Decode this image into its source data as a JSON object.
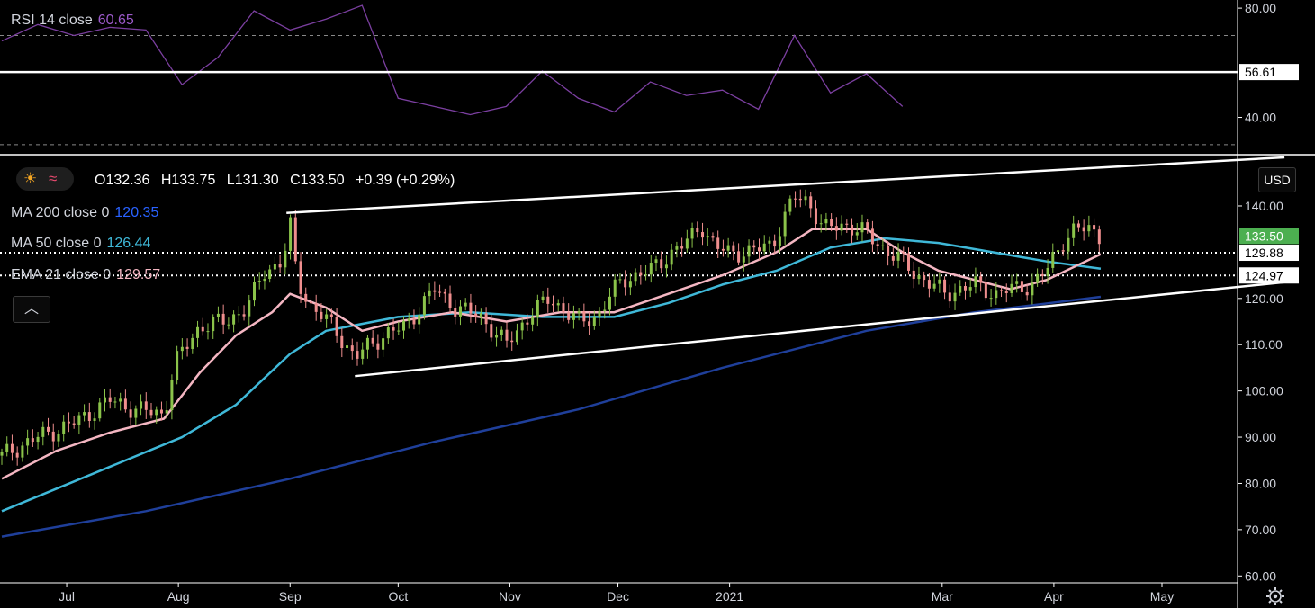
{
  "rsi_legend": {
    "name": "RSI 14 close",
    "value": "60.65"
  },
  "ohlc": {
    "open": "O132.36",
    "high": "H133.75",
    "low": "L131.30",
    "close": "C133.50",
    "change": "+0.39 (+0.29%)"
  },
  "ma_legends": [
    {
      "name": "MA 200 close 0",
      "value": "120.35",
      "color": "#2962ff"
    },
    {
      "name": "MA 50 close 0",
      "value": "126.44",
      "color": "#3fb8d8"
    },
    {
      "name": "EMA 21 close 0",
      "value": "129.57",
      "color": "#f4b6c2"
    }
  ],
  "currency": "USD",
  "icons": {
    "collapse": "chevron-up-icon",
    "settings": "gear-icon",
    "sun": "sun-icon",
    "wave": "wave-icon"
  },
  "colors": {
    "up": "#8bc34a",
    "down": "#ef8e8e",
    "rsi": "#7b3fa0",
    "ma200": "#1f3f9a",
    "ma50": "#3fb8d8",
    "ema21": "#f4b6c2",
    "last_price_bg": "#4caf50"
  },
  "chart_data": [
    {
      "type": "line",
      "title": "RSI 14 close",
      "ylim": [
        27,
        83
      ],
      "yticks": [
        "80.00",
        "40.00"
      ],
      "levels": [
        70,
        30
      ],
      "horizontal_line": {
        "value": 56.61,
        "label": "56.61"
      },
      "x": [
        0,
        10,
        20,
        30,
        40,
        50,
        60,
        70,
        80,
        90,
        100,
        110,
        120,
        130,
        140,
        150,
        160,
        170,
        180,
        190,
        200,
        210,
        220,
        230,
        240,
        250
      ],
      "values": [
        68,
        74,
        70,
        73,
        72,
        52,
        62,
        79,
        72,
        76,
        81,
        47,
        44,
        41,
        44,
        57,
        47,
        42,
        53,
        48,
        50,
        43,
        70,
        49,
        56,
        44
      ]
    },
    {
      "type": "line",
      "ylim": [
        58.5,
        150.5
      ],
      "yticks": [
        "60.00",
        "70.00",
        "80.00",
        "90.00",
        "100.00",
        "110.00",
        "120.00",
        "140.00"
      ],
      "yticks_values": [
        60,
        70,
        80,
        90,
        100,
        110,
        120,
        140
      ],
      "xticks": [
        "Jul",
        "Aug",
        "Sep",
        "Oct",
        "Nov",
        "Dec",
        "2021",
        "Mar",
        "Apr",
        "May"
      ],
      "xticks_day": [
        18,
        49,
        80,
        110,
        141,
        171,
        202,
        261,
        292,
        322
      ],
      "price_labels": [
        {
          "value": 133.5,
          "label": "133.50",
          "kind": "last"
        },
        {
          "value": 129.88,
          "label": "129.88",
          "kind": "level"
        },
        {
          "value": 124.97,
          "label": "124.97",
          "kind": "level"
        }
      ],
      "trendlines": [
        {
          "from": [
            79,
            138.5
          ],
          "to": [
            356,
            150.5
          ]
        },
        {
          "from": [
            98,
            103.2
          ],
          "to": [
            356,
            123.5
          ]
        }
      ],
      "candles_key": [
        [
          0,
          86
        ],
        [
          10,
          90
        ],
        [
          20,
          93
        ],
        [
          30,
          98
        ],
        [
          37,
          96
        ],
        [
          45,
          95
        ],
        [
          48,
          106
        ],
        [
          55,
          114
        ],
        [
          62,
          115
        ],
        [
          68,
          118
        ],
        [
          73,
          126
        ],
        [
          78,
          128
        ],
        [
          80,
          136
        ],
        [
          82,
          124
        ],
        [
          86,
          118
        ],
        [
          92,
          114
        ],
        [
          98,
          107
        ],
        [
          102,
          110
        ],
        [
          106,
          112
        ],
        [
          112,
          114
        ],
        [
          120,
          122
        ],
        [
          126,
          118
        ],
        [
          133,
          116
        ],
        [
          140,
          110
        ],
        [
          146,
          116
        ],
        [
          152,
          120
        ],
        [
          160,
          115
        ],
        [
          165,
          116
        ],
        [
          172,
          124
        ],
        [
          180,
          126
        ],
        [
          186,
          130
        ],
        [
          190,
          132
        ],
        [
          194,
          136
        ],
        [
          198,
          131
        ],
        [
          202,
          130
        ],
        [
          208,
          130
        ],
        [
          214,
          132
        ],
        [
          220,
          142
        ],
        [
          224,
          141
        ],
        [
          228,
          135
        ],
        [
          234,
          136
        ],
        [
          240,
          134
        ],
        [
          246,
          130
        ],
        [
          250,
          128
        ],
        [
          254,
          125
        ],
        [
          258,
          123
        ],
        [
          262,
          121
        ],
        [
          266,
          122
        ],
        [
          270,
          123
        ],
        [
          276,
          121
        ],
        [
          280,
          122
        ],
        [
          286,
          123
        ],
        [
          290,
          126
        ],
        [
          294,
          132
        ],
        [
          298,
          135
        ],
        [
          302,
          135
        ],
        [
          305,
          133.5
        ]
      ],
      "series": [
        {
          "name": "MA 200 close 0",
          "x": [
            0,
            40,
            80,
            120,
            160,
            200,
            240,
            270,
            305
          ],
          "values": [
            68.5,
            74,
            81,
            89,
            96,
            105,
            113,
            117,
            120.35
          ]
        },
        {
          "name": "MA 50 close 0",
          "x": [
            0,
            25,
            50,
            65,
            80,
            90,
            110,
            130,
            150,
            170,
            185,
            200,
            215,
            230,
            245,
            260,
            275,
            290,
            305
          ],
          "values": [
            74,
            82,
            90,
            97,
            108,
            113,
            116,
            117,
            116,
            116,
            119,
            123,
            126,
            131,
            133,
            132,
            130,
            128,
            126.44
          ]
        },
        {
          "name": "EMA 21 close 0",
          "x": [
            0,
            15,
            30,
            45,
            55,
            65,
            75,
            80,
            90,
            100,
            110,
            125,
            140,
            155,
            170,
            185,
            200,
            215,
            225,
            240,
            250,
            260,
            270,
            280,
            290,
            305
          ],
          "values": [
            81,
            87,
            91,
            94,
            104,
            112,
            117,
            121,
            118,
            113,
            115,
            117,
            115,
            117,
            117,
            121,
            125,
            130,
            135,
            135,
            130,
            126,
            124,
            122,
            124,
            129.57
          ]
        }
      ]
    }
  ]
}
